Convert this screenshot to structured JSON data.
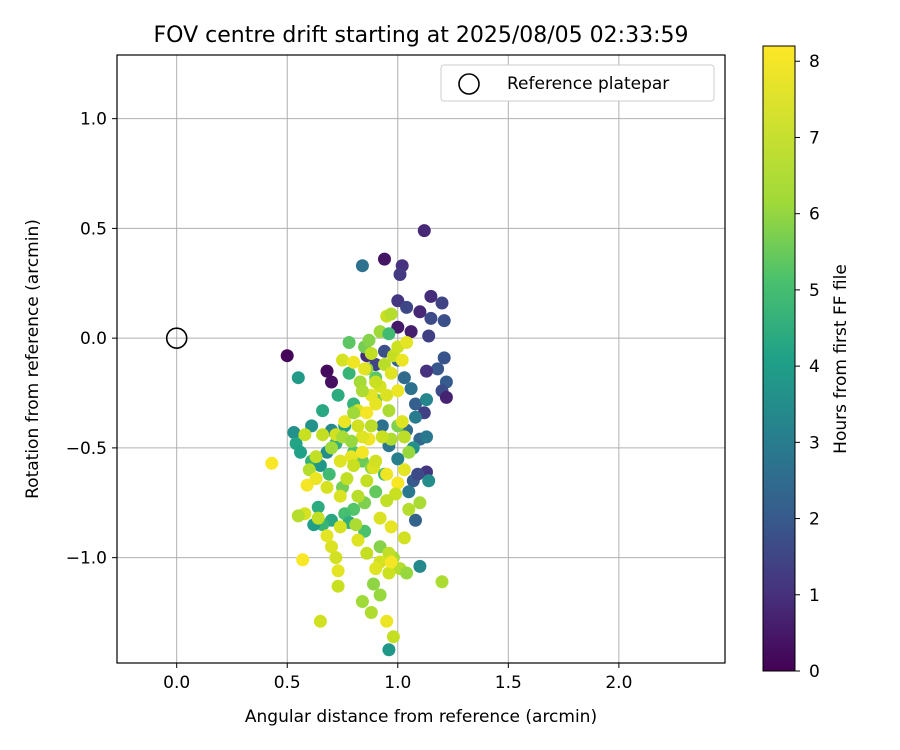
{
  "chart_data": {
    "type": "scatter",
    "title": "FOV centre drift starting at 2025/08/05 02:33:59",
    "xlabel": "Angular distance from reference (arcmin)",
    "ylabel": "Rotation from reference (arcmin)",
    "xlim": [
      -0.27,
      2.48
    ],
    "ylim": [
      -1.48,
      1.29
    ],
    "xticks": [
      "0.0",
      "0.5",
      "1.0",
      "1.5",
      "2.0"
    ],
    "xtick_values": [
      0.0,
      0.5,
      1.0,
      1.5,
      2.0
    ],
    "yticks": [
      "1.0",
      "0.5",
      "0.0",
      "−0.5",
      "−1.0"
    ],
    "ytick_values": [
      1.0,
      0.5,
      0.0,
      -0.5,
      -1.0
    ],
    "grid": true,
    "legend": {
      "placement": "top-right",
      "entries": [
        "Reference platepar"
      ]
    },
    "reference_point": {
      "x": 0.0,
      "y": 0.0,
      "label": "Reference platepar"
    },
    "colorbar": {
      "label": "Hours from first FF file",
      "range": [
        0,
        8.2
      ],
      "ticks": [
        "0",
        "1",
        "2",
        "3",
        "4",
        "5",
        "6",
        "7",
        "8"
      ],
      "tick_values": [
        0,
        1,
        2,
        3,
        4,
        5,
        6,
        7,
        8
      ],
      "colormap": "viridis"
    },
    "points": [
      [
        0.5,
        -0.08,
        0.1
      ],
      [
        0.68,
        -0.15,
        0.2
      ],
      [
        0.7,
        -0.2,
        0.3
      ],
      [
        0.94,
        0.36,
        0.4
      ],
      [
        1.12,
        0.49,
        0.8
      ],
      [
        1.02,
        0.33,
        1.0
      ],
      [
        1.01,
        0.29,
        1.2
      ],
      [
        1.0,
        0.17,
        1.1
      ],
      [
        1.04,
        0.14,
        1.5
      ],
      [
        1.15,
        0.19,
        0.9
      ],
      [
        1.2,
        0.16,
        1.4
      ],
      [
        1.1,
        0.12,
        0.8
      ],
      [
        1.15,
        0.09,
        1.6
      ],
      [
        1.21,
        0.08,
        1.7
      ],
      [
        1.0,
        0.05,
        0.5
      ],
      [
        1.06,
        0.03,
        0.6
      ],
      [
        1.14,
        0.01,
        1.3
      ],
      [
        1.21,
        -0.09,
        1.8
      ],
      [
        1.18,
        -0.14,
        1.9
      ],
      [
        1.22,
        -0.2,
        2.0
      ],
      [
        1.2,
        -0.24,
        1.6
      ],
      [
        1.22,
        -0.27,
        0.7
      ],
      [
        1.13,
        -0.15,
        1.0
      ],
      [
        1.08,
        -0.3,
        2.1
      ],
      [
        1.12,
        -0.34,
        1.3
      ],
      [
        0.86,
        -0.08,
        0.9
      ],
      [
        0.9,
        -0.12,
        1.4
      ],
      [
        0.94,
        -0.06,
        1.7
      ],
      [
        1.0,
        -0.1,
        2.2
      ],
      [
        1.03,
        -0.18,
        2.4
      ],
      [
        1.06,
        -0.23,
        2.6
      ],
      [
        1.13,
        -0.28,
        3.2
      ],
      [
        1.08,
        -0.36,
        2.9
      ],
      [
        1.04,
        -0.42,
        2.5
      ],
      [
        1.1,
        -0.46,
        2.3
      ],
      [
        1.13,
        -0.45,
        2.8
      ],
      [
        1.07,
        -0.5,
        3.5
      ],
      [
        1.13,
        -0.61,
        1.1
      ],
      [
        1.07,
        -0.65,
        2.0
      ],
      [
        1.14,
        -0.65,
        3.4
      ],
      [
        1.05,
        -0.7,
        2.8
      ],
      [
        1.09,
        -0.62,
        1.6
      ],
      [
        1.0,
        -0.55,
        3.0
      ],
      [
        0.96,
        -0.49,
        2.7
      ],
      [
        0.93,
        -0.4,
        2.6
      ],
      [
        0.84,
        0.33,
        2.6
      ],
      [
        0.55,
        -0.18,
        3.8
      ],
      [
        0.66,
        -0.33,
        4.2
      ],
      [
        0.73,
        -0.26,
        4.3
      ],
      [
        0.78,
        -0.16,
        4.6
      ],
      [
        0.78,
        -0.02,
        5.2
      ],
      [
        0.85,
        -0.04,
        5.5
      ],
      [
        0.87,
        -0.01,
        5.7
      ],
      [
        0.92,
        0.03,
        6.0
      ],
      [
        0.96,
        0.02,
        4.8
      ],
      [
        0.9,
        -0.18,
        5.2
      ],
      [
        0.8,
        -0.3,
        4.5
      ],
      [
        0.76,
        -0.4,
        4.0
      ],
      [
        0.7,
        -0.42,
        3.3
      ],
      [
        0.61,
        -0.4,
        3.6
      ],
      [
        0.53,
        -0.43,
        3.5
      ],
      [
        0.54,
        -0.48,
        4.1
      ],
      [
        0.56,
        -0.52,
        4.0
      ],
      [
        0.61,
        -0.56,
        4.5
      ],
      [
        0.65,
        -0.58,
        3.7
      ],
      [
        0.68,
        -0.52,
        3.4
      ],
      [
        0.72,
        -0.48,
        4.4
      ],
      [
        0.8,
        -0.52,
        5.0
      ],
      [
        0.84,
        -0.56,
        5.4
      ],
      [
        0.88,
        -0.59,
        5.8
      ],
      [
        0.94,
        -0.62,
        4.7
      ],
      [
        0.9,
        -0.7,
        5.3
      ],
      [
        0.85,
        -0.75,
        5.6
      ],
      [
        0.8,
        -0.78,
        5.1
      ],
      [
        0.76,
        -0.8,
        4.9
      ],
      [
        0.7,
        -0.83,
        4.2
      ],
      [
        0.66,
        -0.85,
        4.6
      ],
      [
        0.62,
        -0.85,
        3.9
      ],
      [
        0.64,
        -0.77,
        4.3
      ],
      [
        0.69,
        -0.62,
        4.8
      ],
      [
        0.75,
        -0.68,
        5.5
      ],
      [
        0.78,
        -0.84,
        4.4
      ],
      [
        0.85,
        -0.88,
        5.0
      ],
      [
        0.92,
        -0.95,
        5.7
      ],
      [
        0.98,
        -1.0,
        6.1
      ],
      [
        1.01,
        -1.05,
        6.5
      ],
      [
        1.04,
        -1.07,
        5.9
      ],
      [
        1.1,
        -1.04,
        3.3
      ],
      [
        1.2,
        -1.11,
        6.3
      ],
      [
        0.89,
        -1.12,
        5.8
      ],
      [
        0.84,
        -1.2,
        6.0
      ],
      [
        0.88,
        -1.25,
        6.4
      ],
      [
        0.92,
        -1.17,
        5.9
      ],
      [
        0.96,
        -1.42,
        3.7
      ],
      [
        1.08,
        -0.83,
        2.2
      ],
      [
        1.05,
        -0.78,
        6.5
      ],
      [
        1.1,
        -0.75,
        6.2
      ],
      [
        1.05,
        -0.52,
        5.9
      ],
      [
        1.0,
        -0.4,
        5.6
      ],
      [
        0.96,
        -0.33,
        6.3
      ],
      [
        0.9,
        -0.28,
        5.4
      ],
      [
        0.83,
        -0.2,
        6.1
      ],
      [
        0.86,
        -0.14,
        5.8
      ],
      [
        0.94,
        -0.12,
        6.6
      ],
      [
        0.98,
        -0.08,
        6.9
      ],
      [
        1.0,
        -0.04,
        7.1
      ],
      [
        0.95,
        0.1,
        7.0
      ],
      [
        0.97,
        0.11,
        6.5
      ],
      [
        1.04,
        -0.02,
        7.6
      ],
      [
        1.02,
        -0.1,
        7.8
      ],
      [
        0.97,
        -0.16,
        7.5
      ],
      [
        0.92,
        -0.22,
        7.3
      ],
      [
        0.88,
        -0.26,
        7.6
      ],
      [
        0.82,
        -0.33,
        7.4
      ],
      [
        0.76,
        -0.38,
        7.8
      ],
      [
        0.72,
        -0.44,
        7.2
      ],
      [
        0.66,
        -0.44,
        6.9
      ],
      [
        0.58,
        -0.44,
        7.0
      ],
      [
        0.6,
        -0.6,
        6.5
      ],
      [
        0.63,
        -0.54,
        6.8
      ],
      [
        0.68,
        -0.68,
        7.3
      ],
      [
        0.74,
        -0.56,
        7.5
      ],
      [
        0.79,
        -0.54,
        7.7
      ],
      [
        0.84,
        -0.52,
        8.0
      ],
      [
        0.89,
        -0.59,
        7.4
      ],
      [
        0.95,
        -0.62,
        7.9
      ],
      [
        1.0,
        -0.66,
        8.1
      ],
      [
        1.03,
        -0.6,
        7.6
      ],
      [
        0.99,
        -0.71,
        7.0
      ],
      [
        0.95,
        -0.74,
        6.8
      ],
      [
        0.92,
        -0.82,
        7.4
      ],
      [
        0.97,
        -0.86,
        7.7
      ],
      [
        1.03,
        -0.91,
        7.2
      ],
      [
        0.96,
        -0.98,
        6.8
      ],
      [
        0.92,
        -1.02,
        7.3
      ],
      [
        0.96,
        -1.07,
        7.1
      ],
      [
        0.97,
        -1.02,
        8.0
      ],
      [
        0.9,
        -1.05,
        7.5
      ],
      [
        0.86,
        -0.98,
        6.9
      ],
      [
        0.82,
        -0.92,
        7.5
      ],
      [
        0.74,
        -0.86,
        7.3
      ],
      [
        0.7,
        -0.95,
        7.4
      ],
      [
        0.72,
        -1.0,
        7.2
      ],
      [
        0.73,
        -1.06,
        7.6
      ],
      [
        0.73,
        -1.13,
        7.0
      ],
      [
        0.68,
        -0.9,
        7.6
      ],
      [
        0.64,
        -0.82,
        6.8
      ],
      [
        0.58,
        -0.8,
        7.3
      ],
      [
        0.55,
        -0.81,
        6.5
      ],
      [
        0.59,
        -0.67,
        8.0
      ],
      [
        0.63,
        -0.64,
        7.8
      ],
      [
        0.43,
        -0.57,
        8.1
      ],
      [
        0.57,
        -1.01,
        8.1
      ],
      [
        0.65,
        -1.29,
        7.2
      ],
      [
        0.95,
        -1.29,
        7.8
      ],
      [
        0.98,
        -1.36,
        6.9
      ],
      [
        0.81,
        -0.85,
        6.3
      ],
      [
        0.82,
        -0.72,
        6.6
      ],
      [
        0.86,
        -0.65,
        6.9
      ],
      [
        0.9,
        -0.56,
        7.2
      ],
      [
        0.87,
        -0.46,
        7.9
      ],
      [
        0.84,
        -0.45,
        7.5
      ],
      [
        0.82,
        -0.4,
        7.2
      ],
      [
        0.86,
        -0.34,
        8.0
      ],
      [
        0.9,
        -0.3,
        7.7
      ],
      [
        0.95,
        -0.26,
        7.4
      ],
      [
        1.0,
        -0.24,
        7.8
      ],
      [
        1.02,
        -0.38,
        7.5
      ],
      [
        1.03,
        -0.45,
        6.7
      ],
      [
        0.97,
        -0.46,
        6.4
      ],
      [
        0.93,
        -0.45,
        7.0
      ],
      [
        0.88,
        -0.4,
        6.7
      ],
      [
        0.8,
        -0.58,
        7.0
      ],
      [
        0.77,
        -0.64,
        6.8
      ],
      [
        0.74,
        -0.72,
        7.4
      ],
      [
        0.8,
        -0.34,
        6.0
      ],
      [
        0.84,
        -0.24,
        6.3
      ],
      [
        0.88,
        -0.07,
        6.8
      ],
      [
        0.75,
        -0.1,
        7.3
      ],
      [
        0.8,
        -0.11,
        7.9
      ],
      [
        0.85,
        -0.14,
        7.6
      ],
      [
        0.9,
        -0.2,
        7.0
      ],
      [
        0.75,
        -0.45,
        6.2
      ],
      [
        0.79,
        -0.47,
        5.9
      ],
      [
        0.7,
        -0.5,
        6.0
      ]
    ]
  }
}
